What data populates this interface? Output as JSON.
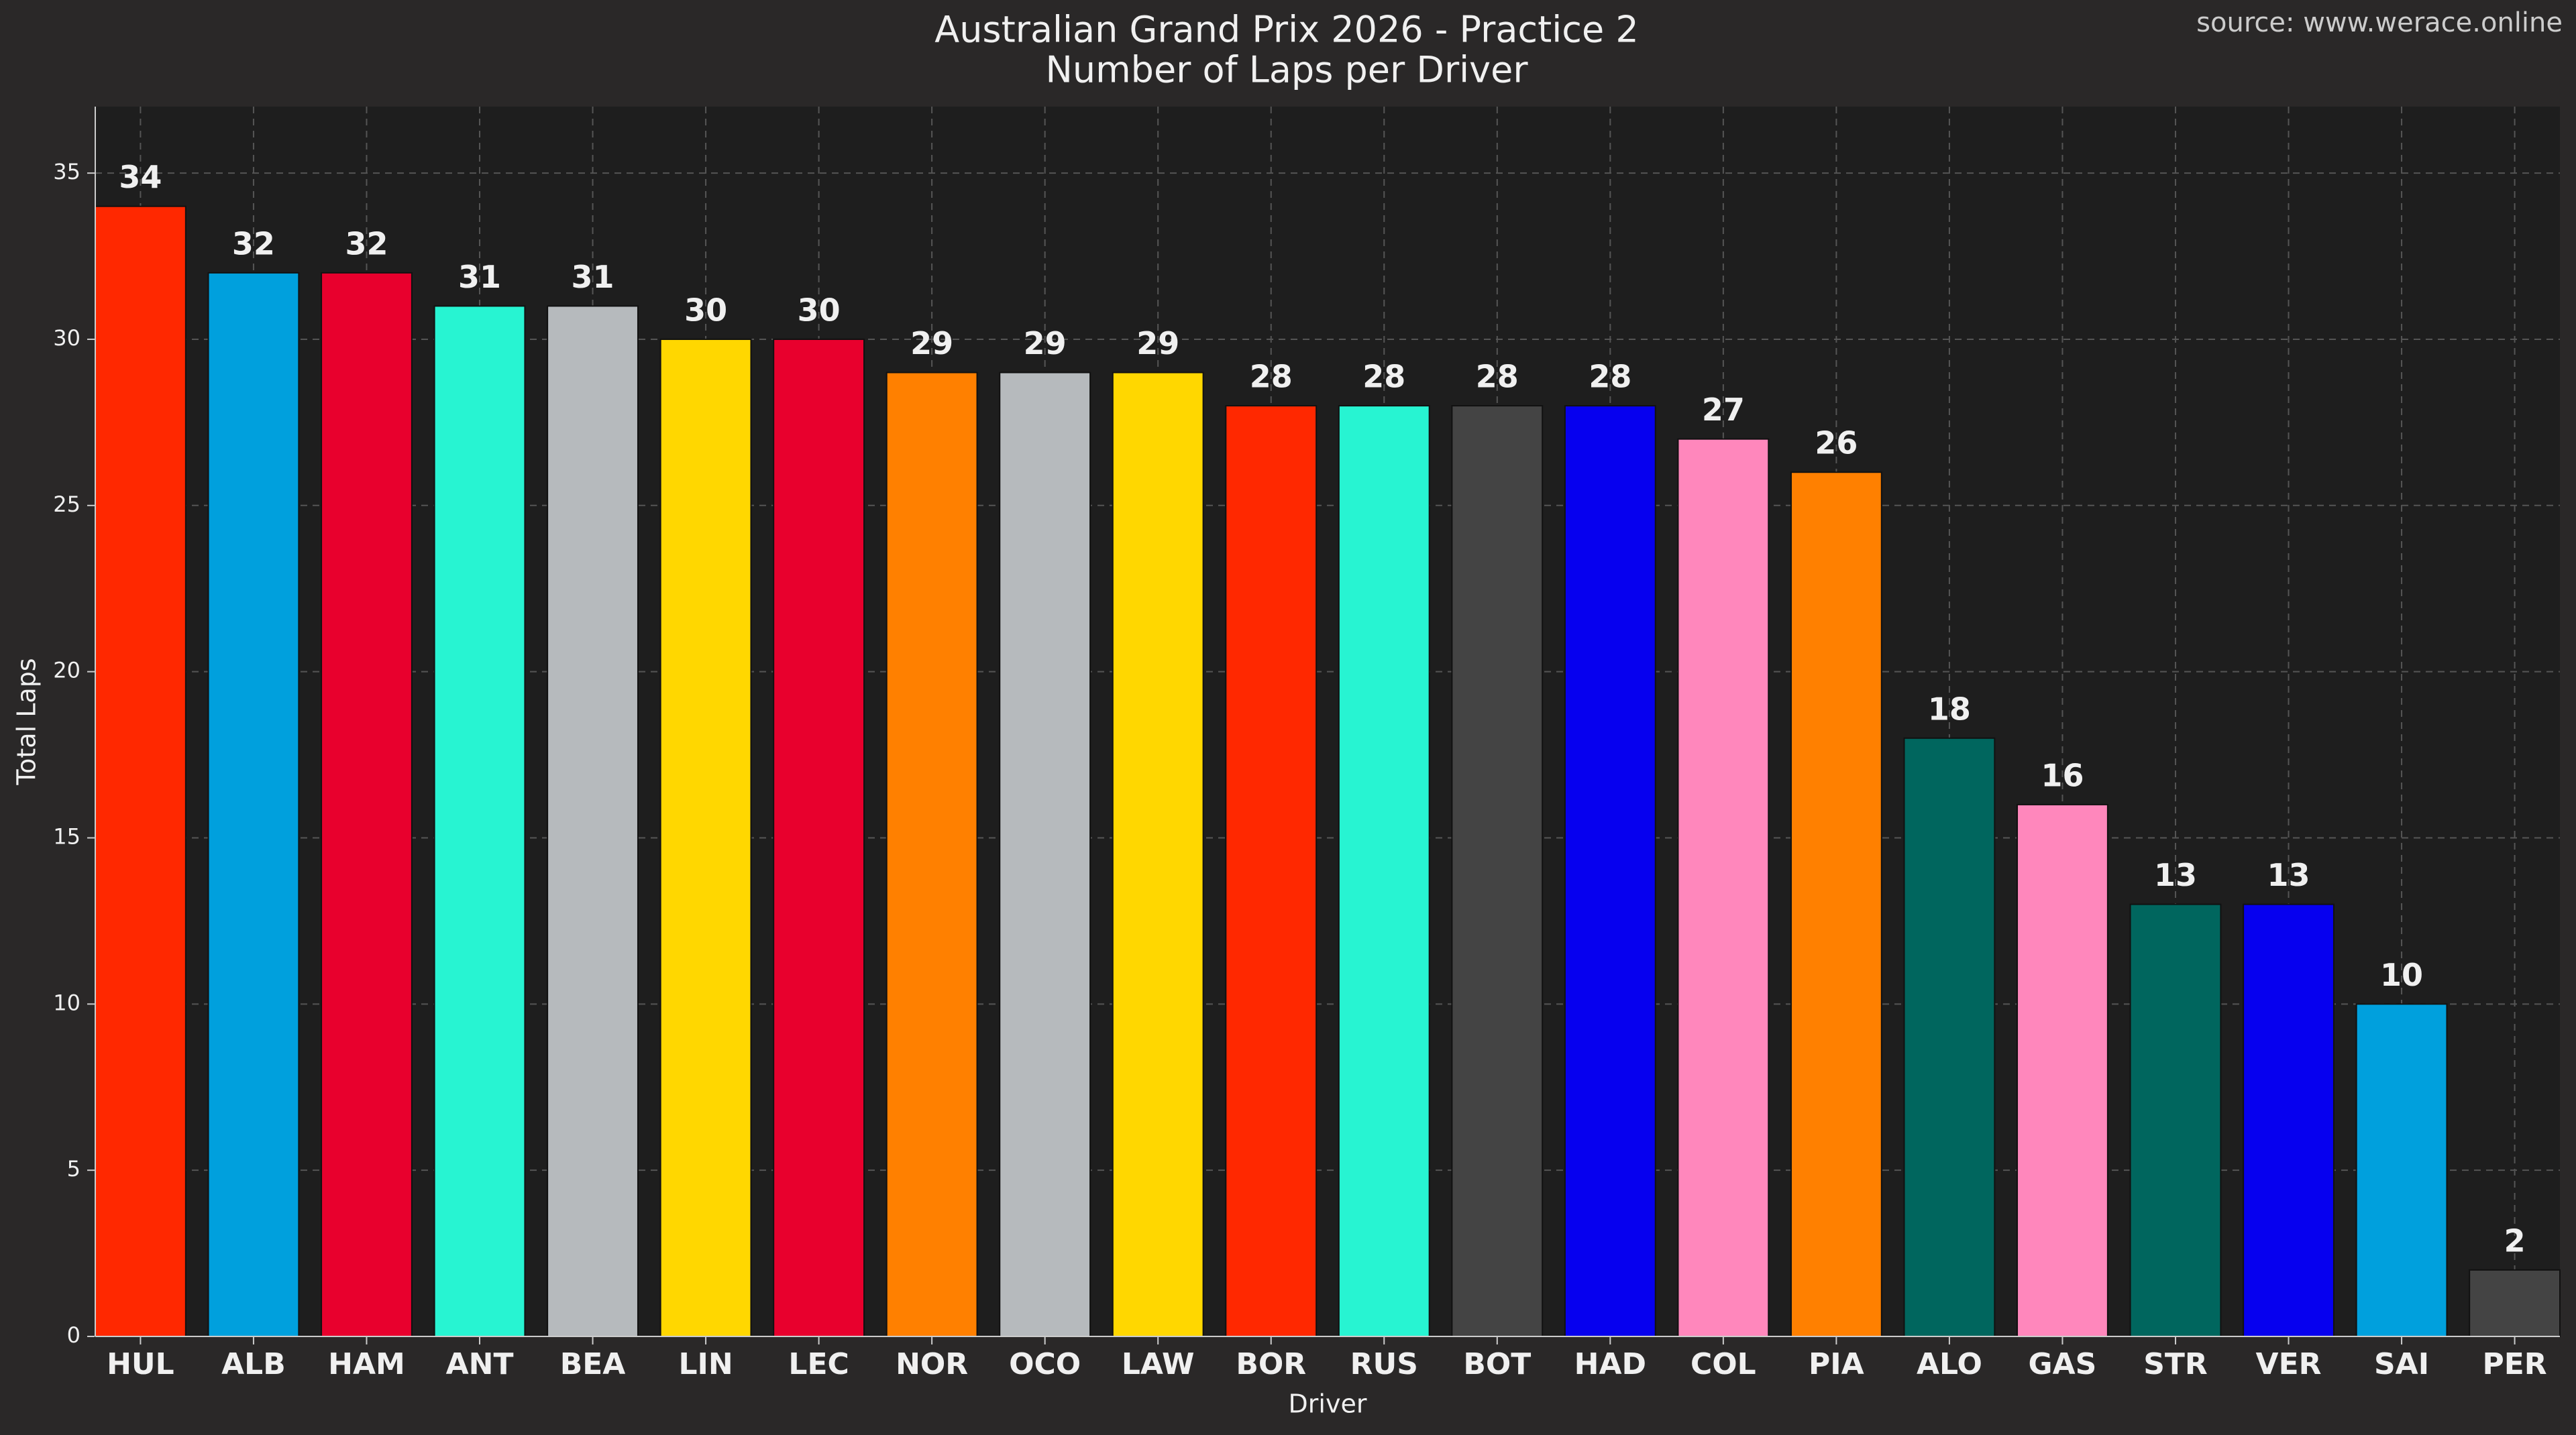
{
  "chart_data": {
    "type": "bar",
    "title": "Australian Grand Prix 2026 - Practice 2",
    "subtitle": "Number of Laps per Driver",
    "source": "source: www.werace.online",
    "x_label": "Driver",
    "y_label": "Total Laps",
    "categories": [
      "HUL",
      "ALB",
      "HAM",
      "ANT",
      "BEA",
      "LIN",
      "LEC",
      "NOR",
      "OCO",
      "LAW",
      "BOR",
      "RUS",
      "BOT",
      "HAD",
      "COL",
      "PIA",
      "ALO",
      "GAS",
      "STR",
      "VER",
      "SAI",
      "PER"
    ],
    "values": [
      34,
      32,
      32,
      31,
      31,
      30,
      30,
      29,
      29,
      29,
      28,
      28,
      28,
      28,
      27,
      26,
      18,
      16,
      13,
      13,
      10,
      2
    ],
    "colors": [
      "#ff2800",
      "#00a0dd",
      "#e8002d",
      "#27f4d2",
      "#b6babd",
      "#ffd700",
      "#e8002d",
      "#ff8000",
      "#b6babd",
      "#ffd700",
      "#ff2800",
      "#27f4d2",
      "#444444",
      "#0600ef",
      "#ff87bc",
      "#ff8000",
      "#00665e",
      "#ff87bc",
      "#00665e",
      "#0600ef",
      "#00a0dd",
      "#444444"
    ],
    "ylim": [
      0,
      37
    ],
    "yticks": [
      0,
      5,
      10,
      15,
      20,
      25,
      30,
      35
    ],
    "grid": true
  }
}
